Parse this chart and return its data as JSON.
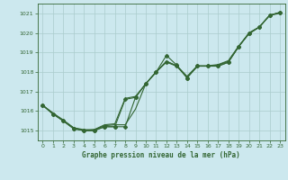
{
  "xlabel": "Graphe pression niveau de la mer (hPa)",
  "ylim": [
    1014.5,
    1021.5
  ],
  "xlim": [
    -0.5,
    23.5
  ],
  "yticks": [
    1015,
    1016,
    1017,
    1018,
    1019,
    1020,
    1021
  ],
  "xticks": [
    0,
    1,
    2,
    3,
    4,
    5,
    6,
    7,
    8,
    9,
    10,
    11,
    12,
    13,
    14,
    15,
    16,
    17,
    18,
    19,
    20,
    21,
    22,
    23
  ],
  "bg_color": "#cce8ee",
  "grid_color": "#aacccc",
  "line_color": "#336633",
  "line1": [
    1016.3,
    1015.9,
    1015.5,
    1015.15,
    1015.0,
    1015.05,
    1015.25,
    1015.3,
    1015.3,
    1016.1,
    1017.4,
    1018.0,
    1018.55,
    1018.3,
    1017.75,
    1018.3,
    1018.3,
    1018.35,
    1018.55,
    1019.3,
    1019.95,
    1020.3,
    1020.9,
    1021.0
  ],
  "line2": [
    1016.3,
    1015.85,
    1015.5,
    1015.1,
    1015.0,
    1015.0,
    1015.2,
    1015.2,
    1015.2,
    1016.7,
    1017.4,
    1018.0,
    1018.5,
    1018.3,
    1017.7,
    1018.3,
    1018.3,
    1018.3,
    1018.5,
    1019.3,
    1020.0,
    1020.3,
    1020.9,
    1021.05
  ],
  "line3": [
    1016.3,
    1015.85,
    1015.5,
    1015.1,
    1015.0,
    1015.0,
    1015.2,
    1015.2,
    1016.6,
    1016.7,
    1017.4,
    1018.0,
    1018.85,
    1018.35,
    1017.7,
    1018.3,
    1018.3,
    1018.3,
    1018.5,
    1019.3,
    1020.0,
    1020.3,
    1020.9,
    1021.05
  ],
  "line4": [
    1016.3,
    1015.9,
    1015.55,
    1015.15,
    1015.05,
    1015.05,
    1015.3,
    1015.35,
    1016.65,
    1016.75,
    1017.4,
    1018.0,
    1018.55,
    1018.32,
    1017.78,
    1018.32,
    1018.32,
    1018.38,
    1018.58,
    1019.33,
    1019.97,
    1020.3,
    1020.9,
    1021.05
  ]
}
